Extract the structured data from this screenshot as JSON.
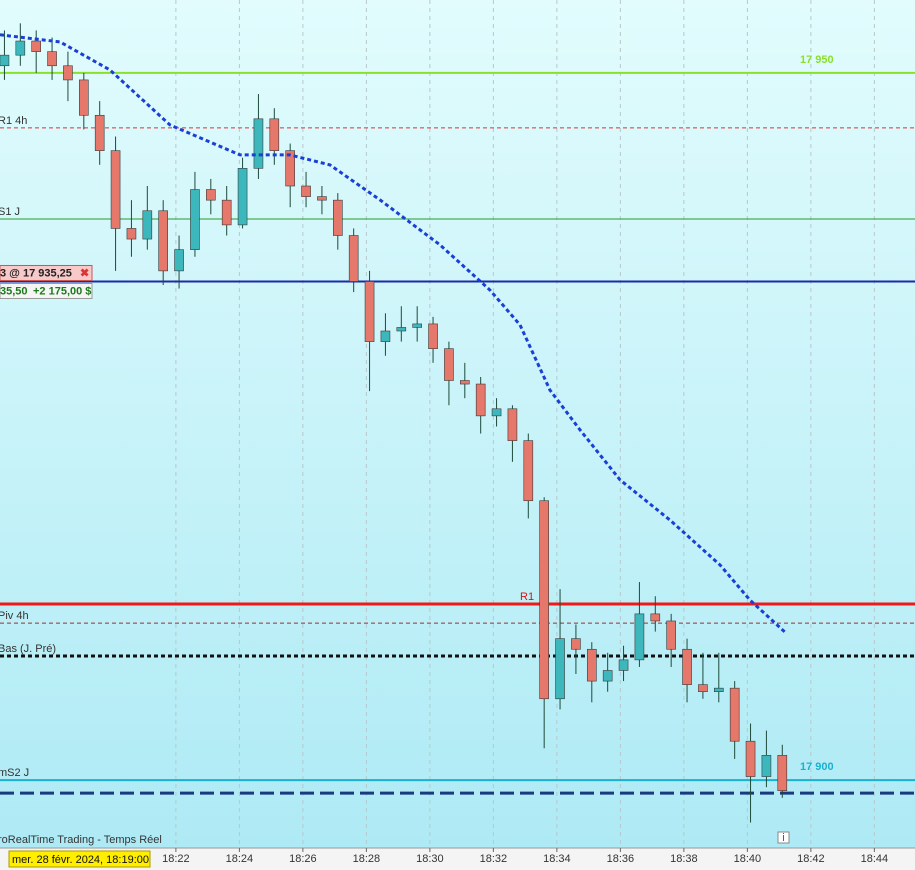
{
  "chart_data": {
    "type": "candlestick",
    "date_label": "mer. 28 févr. 2024, 18:19:00",
    "source_label": "roRealTime Trading - Temps Réel",
    "xlim": [
      1096.46,
      1125.28
    ],
    "xticks": [
      {
        "value": 1102,
        "label": "18:22"
      },
      {
        "value": 1104,
        "label": "18:24"
      },
      {
        "value": 1106,
        "label": "18:26"
      },
      {
        "value": 1108,
        "label": "18:28"
      },
      {
        "value": 1110,
        "label": "18:30"
      },
      {
        "value": 1112,
        "label": "18:32"
      },
      {
        "value": 1114,
        "label": "18:34"
      },
      {
        "value": 1116,
        "label": "18:36"
      },
      {
        "value": 1118,
        "label": "18:38"
      },
      {
        "value": 1120,
        "label": "18:40"
      },
      {
        "value": 1122,
        "label": "18:42"
      },
      {
        "value": 1124,
        "label": "18:44"
      }
    ],
    "ylim": [
      17895.2,
      17955.15
    ],
    "grid": true,
    "up_color": "#3cb8bc",
    "down_color": "#e5786a",
    "x": [
      1096.6,
      1097.1,
      1097.6,
      1098.1,
      1098.6,
      1099.1,
      1099.6,
      1100.1,
      1100.6,
      1101.1,
      1101.6,
      1102.1,
      1102.6,
      1103.1,
      1103.6,
      1104.1,
      1104.6,
      1105.1,
      1105.6,
      1106.1,
      1106.6,
      1107.1,
      1107.6,
      1108.1,
      1108.6,
      1109.1,
      1109.6,
      1110.1,
      1110.6,
      1111.1,
      1111.6,
      1112.1,
      1112.6,
      1113.1,
      1113.6,
      1114.1,
      1114.6,
      1115.1,
      1115.6,
      1116.1,
      1116.6,
      1117.1,
      1117.6,
      1118.1,
      1118.6,
      1119.1,
      1119.6,
      1120.1,
      1120.6,
      1121.1
    ],
    "open": [
      17950.5,
      17951.25,
      17952.25,
      17951.5,
      17950.5,
      17949.5,
      17947,
      17944.5,
      17939,
      17938.25,
      17940.25,
      17936,
      17937.5,
      17941.75,
      17941,
      17939.25,
      17943.25,
      17946.75,
      17944.5,
      17942,
      17941.25,
      17941,
      17938.5,
      17935.25,
      17931,
      17931.75,
      17932,
      17932.25,
      17930.5,
      17928.25,
      17928,
      17925.75,
      17926.25,
      17924,
      17919.75,
      17905.75,
      17910,
      17909.25,
      17907,
      17907.75,
      17908.5,
      17911.75,
      17911.25,
      17909.25,
      17906.75,
      17906.25,
      17906.5,
      17902.75,
      17900.25,
      17901.75
    ],
    "high": [
      17953,
      17953.5,
      17953,
      17952.5,
      17951.5,
      17950,
      17948,
      17945.5,
      17941,
      17942,
      17941,
      17938.5,
      17943,
      17942.5,
      17942,
      17944,
      17948.5,
      17947.5,
      17945,
      17943,
      17942,
      17941.5,
      17939,
      17936,
      17933,
      17933.5,
      17933.5,
      17932.75,
      17931,
      17929.5,
      17928.5,
      17927,
      17926.5,
      17924.5,
      17920,
      17913.5,
      17911,
      17909.75,
      17909,
      17909.5,
      17914,
      17913,
      17911.75,
      17910,
      17909,
      17909,
      17907,
      17904,
      17903.5,
      17902.5
    ],
    "low": [
      17949.5,
      17950.5,
      17950,
      17949.5,
      17948,
      17946,
      17943.5,
      17936,
      17937,
      17937.5,
      17935,
      17934.75,
      17937,
      17940,
      17938.5,
      17939,
      17942.5,
      17943.5,
      17940.5,
      17940.5,
      17940,
      17937.5,
      17934.5,
      17927.5,
      17930,
      17931,
      17931,
      17929.5,
      17926.5,
      17927,
      17924.5,
      17925,
      17922.5,
      17918.5,
      17902.25,
      17905,
      17907.5,
      17905.5,
      17906.25,
      17907,
      17908,
      17910.5,
      17908,
      17905.5,
      17905.75,
      17905.5,
      17901.5,
      17897,
      17899.5,
      17898.75
    ],
    "close": [
      17951.25,
      17952.25,
      17951.5,
      17950.5,
      17949.5,
      17947,
      17944.5,
      17939,
      17938.25,
      17940.25,
      17936,
      17937.5,
      17941.75,
      17941,
      17939.25,
      17943.25,
      17946.75,
      17944.5,
      17942,
      17941.25,
      17941,
      17938.5,
      17935.25,
      17931,
      17931.75,
      17932,
      17932.25,
      17930.5,
      17928.25,
      17928,
      17925.75,
      17926.25,
      17924,
      17919.75,
      17905.75,
      17910,
      17909.25,
      17907,
      17907.75,
      17908.5,
      17911.75,
      17911.25,
      17909.25,
      17906.75,
      17906.25,
      17906.5,
      17902.75,
      17900.25,
      17901.75,
      17899.25
    ],
    "moving_average": {
      "color": "#1a3fd6",
      "x": [
        1096.46,
        1098.35,
        1099.92,
        1101.81,
        1104.02,
        1105.59,
        1106.85,
        1108.43,
        1110.32,
        1111.89,
        1112.84,
        1113.78,
        1114.73,
        1115.99,
        1117.56,
        1119.14,
        1120.08,
        1121.18
      ],
      "values": [
        17952.69,
        17952.19,
        17950.21,
        17946.32,
        17944.2,
        17944.2,
        17943.49,
        17941.02,
        17937.84,
        17934.65,
        17932.18,
        17927.58,
        17924.75,
        17921.22,
        17918.39,
        17915.21,
        17912.73,
        17910.47
      ]
    },
    "levels": [
      {
        "value": 17950,
        "value_label": "17 950",
        "color": "#8be02a",
        "width": 2,
        "dash": "solid"
      },
      {
        "name": "R1 4h",
        "value": 17946.11,
        "color": "#e03030",
        "width": 1,
        "dash": "dashed"
      },
      {
        "name": "S1 J",
        "value": 17939.67,
        "color": "#2a9a2a",
        "width": 1,
        "dash": "solid"
      },
      {
        "value": 17935.25,
        "color": "#1a2aa8",
        "width": 2,
        "dash": "solid"
      },
      {
        "name": "Piv 4h",
        "value": 17911.1,
        "color": "#9a3030",
        "width": 1,
        "dash": "dashed"
      },
      {
        "name": "R1",
        "value": 17912.45,
        "color": "#f01818",
        "width": 3,
        "dash": "solid"
      },
      {
        "name": "Bas (J. Pré)",
        "value": 17908.77,
        "color": "#111111",
        "width": 3,
        "dash": "dashed"
      },
      {
        "name": "mS2 J",
        "value": 17900,
        "value_label": "17 900",
        "color": "#1ab0d0",
        "width": 2,
        "dash": "solid"
      },
      {
        "value": 17899.08,
        "color": "#1a3a80",
        "width": 3,
        "dash": "long"
      }
    ],
    "position": {
      "order": "3  @  17 935,25",
      "points": "35,50",
      "pnl": "+2 175,00 $"
    }
  }
}
